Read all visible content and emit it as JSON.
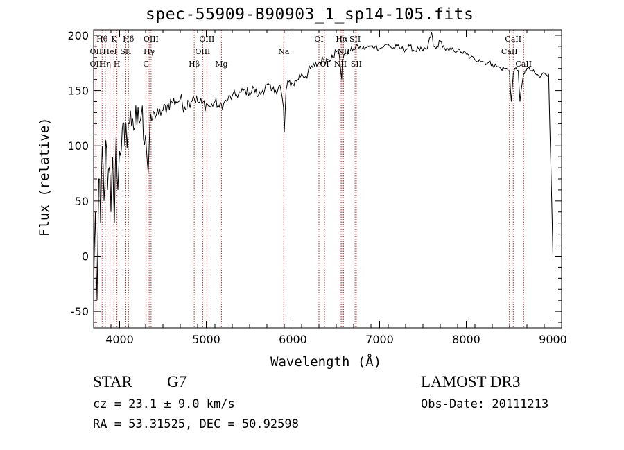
{
  "title": "spec-55909-B90903_1_sp14-105.fits",
  "info": {
    "object_class": "STAR",
    "subclass": "G7",
    "cz": "cz = 23.1 ± 9.0 km/s",
    "radec": "RA =  53.31525, DEC =  50.92598",
    "survey": "LAMOST DR3",
    "obs_date": "Obs-Date: 20111213"
  },
  "colors": {
    "spectrum": "#000000",
    "lines": "#b03030",
    "axes": "#000000"
  },
  "chart_data": {
    "type": "line",
    "title": "spec-55909-B90903_1_sp14-105.fits",
    "xlabel": "Wavelength (Å)",
    "ylabel": "Flux (relative)",
    "xlim": [
      3700,
      9100
    ],
    "ylim": [
      -65,
      205
    ],
    "xticks": [
      4000,
      5000,
      6000,
      7000,
      8000,
      9000
    ],
    "yticks": [
      -50,
      0,
      50,
      100,
      150,
      200
    ],
    "series": [
      {
        "name": "flux",
        "x": [
          3700,
          3720,
          3740,
          3760,
          3780,
          3800,
          3820,
          3840,
          3860,
          3880,
          3900,
          3920,
          3940,
          3960,
          3980,
          4000,
          4030,
          4060,
          4100,
          4150,
          4200,
          4250,
          4300,
          4330,
          4350,
          4380,
          4400,
          4450,
          4500,
          4550,
          4600,
          4650,
          4700,
          4750,
          4800,
          4850,
          4900,
          4950,
          5000,
          5050,
          5100,
          5150,
          5200,
          5250,
          5300,
          5350,
          5400,
          5450,
          5500,
          5550,
          5600,
          5650,
          5700,
          5750,
          5800,
          5850,
          5890,
          5900,
          5920,
          5950,
          6000,
          6050,
          6100,
          6150,
          6200,
          6250,
          6300,
          6350,
          6400,
          6450,
          6500,
          6530,
          6563,
          6570,
          6600,
          6650,
          6700,
          6750,
          6800,
          6850,
          6900,
          6950,
          7000,
          7050,
          7100,
          7150,
          7200,
          7250,
          7300,
          7350,
          7400,
          7450,
          7500,
          7550,
          7600,
          7620,
          7650,
          7700,
          7750,
          7800,
          7850,
          7900,
          7950,
          8000,
          8050,
          8100,
          8150,
          8200,
          8250,
          8300,
          8350,
          8400,
          8450,
          8498,
          8520,
          8542,
          8560,
          8600,
          8620,
          8662,
          8680,
          8700,
          8750,
          8800,
          8850,
          8900,
          8950,
          8990,
          9000
        ],
        "values": [
          -30,
          40,
          -40,
          70,
          30,
          100,
          50,
          105,
          60,
          80,
          40,
          90,
          30,
          110,
          60,
          95,
          115,
          100,
          120,
          125,
          118,
          128,
          110,
          75,
          120,
          125,
          130,
          128,
          132,
          136,
          140,
          140,
          142,
          135,
          140,
          145,
          140,
          138,
          138,
          135,
          140,
          135,
          138,
          142,
          145,
          146,
          148,
          150,
          148,
          152,
          145,
          150,
          155,
          150,
          150,
          155,
          135,
          112,
          150,
          158,
          156,
          160,
          165,
          163,
          170,
          172,
          175,
          178,
          178,
          182,
          185,
          185,
          160,
          178,
          182,
          186,
          188,
          190,
          188,
          189,
          190,
          190,
          188,
          190,
          192,
          188,
          190,
          188,
          187,
          190,
          186,
          188,
          186,
          188,
          203,
          190,
          188,
          195,
          188,
          186,
          187,
          186,
          185,
          183,
          180,
          178,
          178,
          176,
          175,
          174,
          172,
          170,
          170,
          168,
          140,
          165,
          170,
          168,
          140,
          165,
          168,
          170,
          168,
          165,
          162,
          166,
          165,
          35,
          0
        ]
      }
    ],
    "lines": [
      {
        "label": "Hθ",
        "wave": 3798,
        "row": 0
      },
      {
        "label": "OII",
        "wave": 3727,
        "row": 1
      },
      {
        "label": "OII",
        "wave": 3727,
        "row": 2
      },
      {
        "label": "Hη",
        "wave": 3835,
        "row": 2
      },
      {
        "label": "HeI",
        "wave": 3889,
        "row": 1
      },
      {
        "label": "K",
        "wave": 3934,
        "row": 0
      },
      {
        "label": "H",
        "wave": 3969,
        "row": 2
      },
      {
        "label": "SII",
        "wave": 4072,
        "row": 1
      },
      {
        "label": "Hδ",
        "wave": 4102,
        "row": 0
      },
      {
        "label": "G",
        "wave": 4305,
        "row": 2
      },
      {
        "label": "Hγ",
        "wave": 4341,
        "row": 1
      },
      {
        "label": "OIII",
        "wave": 4363,
        "row": 0
      },
      {
        "label": "Hβ",
        "wave": 4861,
        "row": 2
      },
      {
        "label": "OIII",
        "wave": 4959,
        "row": 1
      },
      {
        "label": "OIII",
        "wave": 5007,
        "row": 0
      },
      {
        "label": "Mg",
        "wave": 5175,
        "row": 2
      },
      {
        "label": "Na",
        "wave": 5894,
        "row": 1
      },
      {
        "label": "OI",
        "wave": 6300,
        "row": 0
      },
      {
        "label": "OI",
        "wave": 6364,
        "row": 2
      },
      {
        "label": "NII",
        "wave": 6548,
        "row": 2
      },
      {
        "label": "Hα",
        "wave": 6563,
        "row": 0
      },
      {
        "label": "NII",
        "wave": 6583,
        "row": 1
      },
      {
        "label": "SII",
        "wave": 6717,
        "row": 0
      },
      {
        "label": "SII",
        "wave": 6731,
        "row": 2
      },
      {
        "label": "CaII",
        "wave": 8498,
        "row": 1
      },
      {
        "label": "CaII",
        "wave": 8542,
        "row": 0
      },
      {
        "label": "CaII",
        "wave": 8662,
        "row": 2
      }
    ]
  }
}
